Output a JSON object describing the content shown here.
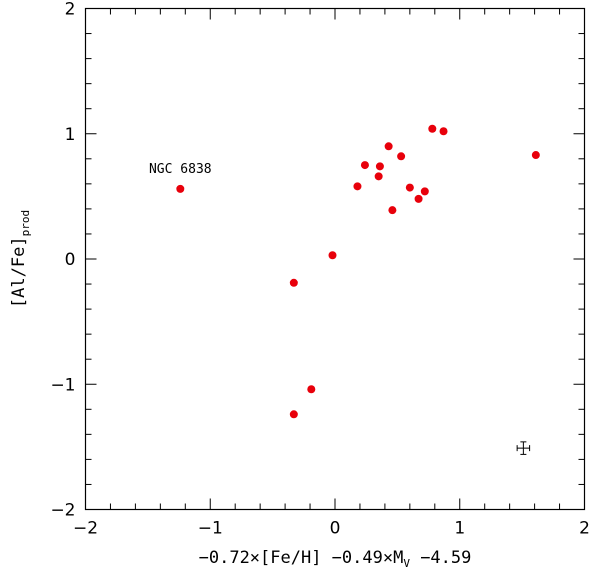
{
  "chart_data": {
    "type": "scatter",
    "title": "",
    "xlabel": {
      "prefix": "−0.72×[Fe/H] −0.49×M",
      "sub": "V",
      "suffix": " −4.59"
    },
    "ylabel": {
      "main": "[Al/Fe]",
      "sub": "prod"
    },
    "xlim": [
      -2,
      2
    ],
    "ylim": [
      -2,
      2
    ],
    "grid": false,
    "x_tick_labels": [
      "−2",
      "−1",
      "0",
      "1",
      "2"
    ],
    "y_tick_labels": [
      "−2",
      "−1",
      "0",
      "1",
      "2"
    ],
    "marker_color": "#e8000b",
    "points": [
      {
        "x": -1.24,
        "y": 0.56
      },
      {
        "x": -0.33,
        "y": -0.19
      },
      {
        "x": -0.33,
        "y": -1.24
      },
      {
        "x": -0.19,
        "y": -1.04
      },
      {
        "x": -0.02,
        "y": 0.03
      },
      {
        "x": 0.18,
        "y": 0.58
      },
      {
        "x": 0.24,
        "y": 0.75
      },
      {
        "x": 0.35,
        "y": 0.66
      },
      {
        "x": 0.36,
        "y": 0.74
      },
      {
        "x": 0.43,
        "y": 0.9
      },
      {
        "x": 0.46,
        "y": 0.39
      },
      {
        "x": 0.53,
        "y": 0.82
      },
      {
        "x": 0.6,
        "y": 0.57
      },
      {
        "x": 0.67,
        "y": 0.48
      },
      {
        "x": 0.72,
        "y": 0.54
      },
      {
        "x": 0.78,
        "y": 1.04
      },
      {
        "x": 0.87,
        "y": 1.02
      },
      {
        "x": 1.61,
        "y": 0.83
      }
    ],
    "annotations": [
      {
        "text": "NGC 6838",
        "x": -1.24,
        "y": 0.72
      }
    ],
    "error_bar": {
      "x": 1.51,
      "y": -1.51,
      "xerr": 0.05,
      "yerr": 0.05
    }
  }
}
